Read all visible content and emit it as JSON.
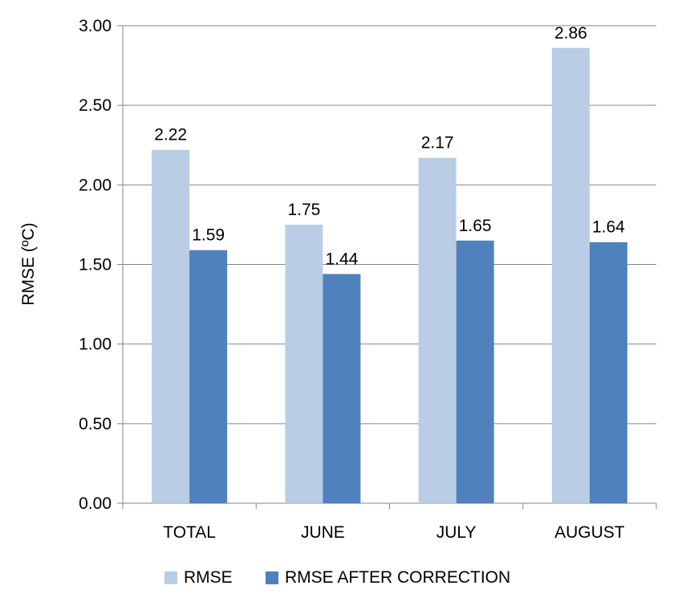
{
  "chart_data": {
    "type": "bar",
    "categories": [
      "TOTAL",
      "JUNE",
      "JULY",
      "AUGUST"
    ],
    "series": [
      {
        "name": "RMSE",
        "values": [
          2.22,
          1.75,
          2.17,
          2.86
        ],
        "color": "#B9CDE5"
      },
      {
        "name": "RMSE AFTER CORRECTION",
        "values": [
          1.59,
          1.44,
          1.65,
          1.64
        ],
        "color": "#4F81BD"
      }
    ],
    "value_labels": [
      [
        "2.22",
        "1.75",
        "2.17",
        "2.86"
      ],
      [
        "1.59",
        "1.44",
        "1.65",
        "1.64"
      ]
    ],
    "title": "",
    "xlabel": "",
    "ylabel": "RMSE (ºC)",
    "ylim": [
      0,
      3.0
    ],
    "yticks": [
      "0.00",
      "0.50",
      "1.00",
      "1.50",
      "2.00",
      "2.50",
      "3.00"
    ],
    "grid": true,
    "legend_position": "bottom"
  }
}
